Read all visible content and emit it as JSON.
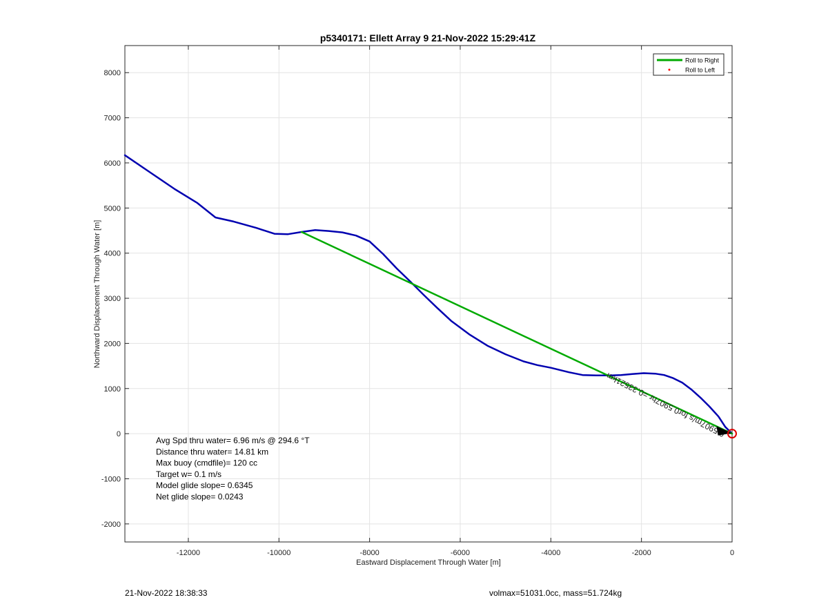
{
  "chart_data": {
    "type": "line",
    "title": "p5340171: Ellett Array 9 21-Nov-2022 15:29:41Z",
    "xlabel": "Eastward Displacement Through Water [m]",
    "ylabel": "Northward Displacement Through Water [m]",
    "xlim": [
      -13400,
      0
    ],
    "ylim": [
      -2400,
      8600
    ],
    "xticks": [
      -12000,
      -10000,
      -8000,
      -6000,
      -4000,
      -2000,
      0
    ],
    "yticks": [
      -2000,
      -1000,
      0,
      1000,
      2000,
      3000,
      4000,
      5000,
      6000,
      7000,
      8000
    ],
    "grid": true,
    "legend": {
      "placement": "top-right",
      "entries": [
        {
          "label": "Roll to Right",
          "color": "#00aa00",
          "style": "line"
        },
        {
          "label": "Roll to Left",
          "color": "#ff0000",
          "style": "dot"
        }
      ]
    },
    "series": [
      {
        "color": "#0000b0",
        "points": [
          [
            0,
            0
          ],
          [
            -150,
            150
          ],
          [
            -300,
            380
          ],
          [
            -500,
            600
          ],
          [
            -700,
            800
          ],
          [
            -900,
            980
          ],
          [
            -1100,
            1130
          ],
          [
            -1300,
            1230
          ],
          [
            -1500,
            1300
          ],
          [
            -1700,
            1330
          ],
          [
            -1950,
            1340
          ],
          [
            -2200,
            1320
          ],
          [
            -2450,
            1300
          ],
          [
            -2700,
            1290
          ],
          [
            -3000,
            1290
          ],
          [
            -3300,
            1300
          ],
          [
            -3600,
            1360
          ],
          [
            -4000,
            1460
          ],
          [
            -4300,
            1520
          ],
          [
            -4600,
            1600
          ],
          [
            -5000,
            1760
          ],
          [
            -5400,
            1950
          ],
          [
            -5800,
            2200
          ],
          [
            -6200,
            2500
          ],
          [
            -6500,
            2780
          ],
          [
            -6800,
            3070
          ],
          [
            -7100,
            3370
          ],
          [
            -7400,
            3660
          ],
          [
            -7700,
            3980
          ],
          [
            -8000,
            4260
          ],
          [
            -8300,
            4390
          ],
          [
            -8600,
            4460
          ],
          [
            -8900,
            4490
          ],
          [
            -9200,
            4510
          ],
          [
            -9500,
            4470
          ],
          [
            -9800,
            4420
          ],
          [
            -10100,
            4430
          ],
          [
            -10500,
            4560
          ],
          [
            -11000,
            4700
          ],
          [
            -11400,
            4790
          ],
          [
            -11800,
            5110
          ],
          [
            -12300,
            5420
          ],
          [
            -12800,
            5760
          ],
          [
            -13400,
            6170
          ]
        ]
      },
      {
        "name": "Roll to Right",
        "color": "#00aa00",
        "points": [
          [
            0,
            0
          ],
          [
            -9500,
            4470
          ]
        ]
      }
    ],
    "annotations": {
      "rotated_text": "0.5907m/s for0.5907hr =0.33521km",
      "end_marker_color": "#dd0000",
      "stats": [
        "Avg Spd thru water=  6.96 m/s @ 294.6 °T",
        "Distance thru water= 14.81 km",
        "Max buoy (cmdfile)= 120 cc",
        "Target w= 0.1 m/s",
        "Model glide slope= 0.6345",
        "Net glide slope= 0.0243"
      ]
    }
  },
  "footer": {
    "left": "21-Nov-2022 18:38:33",
    "right": "volmax=51031.0cc, mass=51.724kg"
  }
}
